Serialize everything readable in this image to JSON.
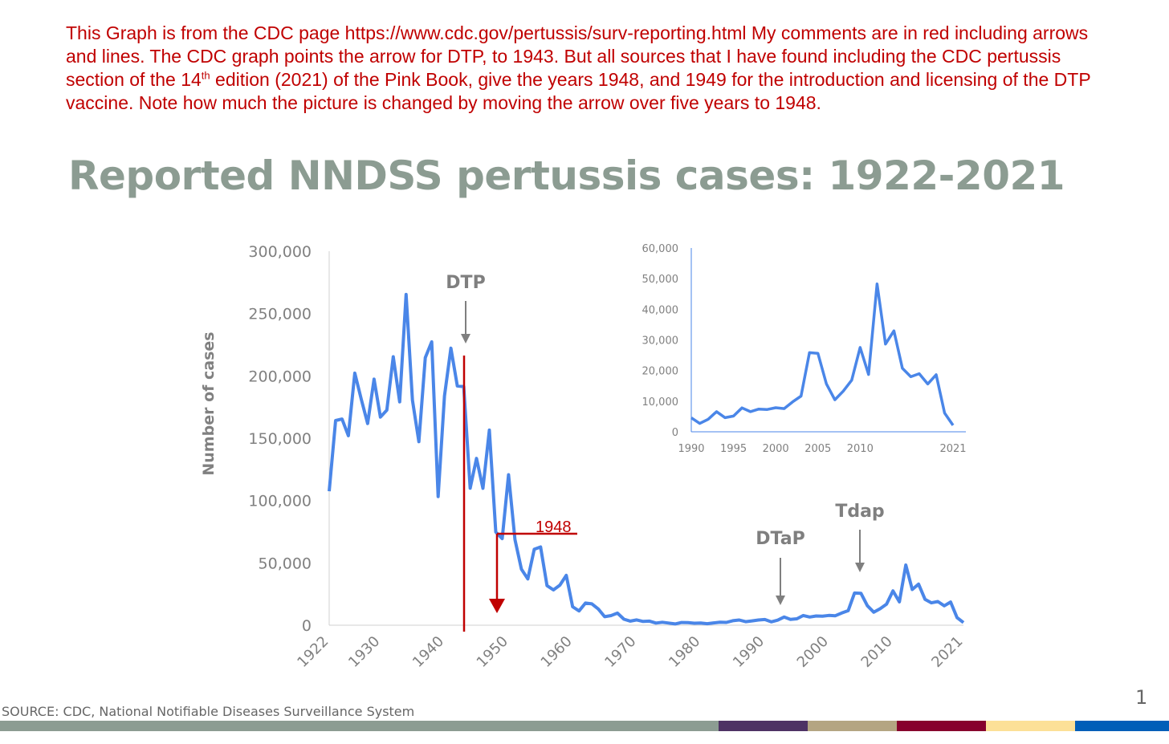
{
  "comment": {
    "part1": "This Graph is from the CDC page https://www.cdc.gov/pertussis/surv-reporting.html My comments are in red including arrows and lines. The CDC graph points the arrow for DTP, to 1943. But all sources that I have found including the CDC pertussis section of the 14",
    "sup": "th",
    "part2": " edition (2021) of the Pink Book, give the years 1948, and 1949 for the introduction and licensing of the DTP vaccine. Note how much the picture is changed by moving the arrow over five years to 1948."
  },
  "slide": {
    "title": "Reported NNDSS pertussis cases: 1922-2021",
    "source": "SOURCE:  CDC, National Notifiable Diseases Surveillance System",
    "page_number": "1"
  },
  "colors": {
    "line": "#4a86e8",
    "annotation_red": "#c00000",
    "title_gray": "#8c9c92",
    "axis_text": "#808080",
    "footer": [
      "#8c9c92",
      "#4e3264",
      "#b4a582",
      "#87002d",
      "#fce097",
      "#005eb8"
    ]
  },
  "chart_data": [
    {
      "type": "line",
      "title": "Reported NNDSS pertussis cases: 1922-2021",
      "ylabel": "Number of cases",
      "xlabel": "",
      "ylim": [
        0,
        300000
      ],
      "xlim": [
        1922,
        2021
      ],
      "yticks": [
        0,
        50000,
        100000,
        150000,
        200000,
        250000,
        300000
      ],
      "ytick_labels": [
        "0",
        "50,000",
        "100,000",
        "150,000",
        "200,000",
        "250,000",
        "300,000"
      ],
      "xticks": [
        1922,
        1930,
        1940,
        1950,
        1960,
        1970,
        1980,
        1990,
        2000,
        2010,
        2021
      ],
      "xtick_labels": [
        "1922",
        "1930",
        "1940",
        "1950",
        "1960",
        "1970",
        "1980",
        "1990",
        "2000",
        "2010",
        "2021"
      ],
      "grid": false,
      "series": [
        {
          "x": [
            1922,
            1923,
            1924,
            1925,
            1926,
            1927,
            1928,
            1929,
            1930,
            1931,
            1932,
            1933,
            1934,
            1935,
            1936,
            1937,
            1938,
            1939,
            1940,
            1941,
            1942,
            1943,
            1944,
            1945,
            1946,
            1947,
            1948,
            1949,
            1950,
            1951,
            1952,
            1953,
            1954,
            1955,
            1956,
            1957,
            1958,
            1959,
            1960,
            1961,
            1962,
            1963,
            1964,
            1965,
            1966,
            1967,
            1968,
            1969,
            1970,
            1971,
            1972,
            1973,
            1974,
            1975,
            1976,
            1977,
            1978,
            1979,
            1980,
            1981,
            1982,
            1983,
            1984,
            1985,
            1986,
            1987,
            1988,
            1989,
            1990,
            1991,
            1992,
            1993,
            1994,
            1995,
            1996,
            1997,
            1998,
            1999,
            2000,
            2001,
            2002,
            2003,
            2004,
            2005,
            2006,
            2007,
            2008,
            2009,
            2010,
            2011,
            2012,
            2013,
            2014,
            2015,
            2016,
            2017,
            2018,
            2019,
            2020,
            2021
          ],
          "values": [
            107473,
            164191,
            165418,
            152003,
            202210,
            181411,
            161799,
            197371,
            166914,
            172559,
            215343,
            179135,
            265269,
            180518,
            147237,
            214652,
            227319,
            103188,
            183866,
            222202,
            191890,
            191383,
            109873,
            133792,
            109860,
            156517,
            74715,
            69479,
            120718,
            68687,
            45030,
            37129,
            60886,
            62786,
            31732,
            28295,
            32148,
            40005,
            14809,
            11468,
            17749,
            17135,
            13005,
            6799,
            7717,
            9718,
            4810,
            3285,
            4249,
            3036,
            3287,
            1759,
            2402,
            1738,
            1010,
            2177,
            2063,
            1623,
            1730,
            1248,
            1895,
            2463,
            2276,
            3589,
            4195,
            2823,
            3450,
            4157,
            4570,
            2719,
            4083,
            6586,
            4617,
            5137,
            7796,
            6564,
            7405,
            7288,
            7867,
            7580,
            9771,
            11647,
            25827,
            25616,
            15632,
            10454,
            13278,
            16858,
            27550,
            18719,
            48277,
            28639,
            32971,
            20762,
            17972,
            18975,
            15609,
            18617,
            6124,
            2116
          ]
        }
      ],
      "annotations": [
        {
          "label": "DTP",
          "x": 1943
        },
        {
          "label": "DTaP",
          "x": 1992
        },
        {
          "label": "Tdap",
          "x": 2005
        },
        {
          "label": "1948",
          "x": 1948,
          "note": "red"
        }
      ]
    },
    {
      "type": "line",
      "title": "",
      "ylim": [
        0,
        60000
      ],
      "xlim": [
        1990,
        2021
      ],
      "yticks": [
        0,
        10000,
        20000,
        30000,
        40000,
        50000,
        60000
      ],
      "ytick_labels": [
        "0",
        "10,000",
        "20,000",
        "30,000",
        "40,000",
        "50,000",
        "60,000"
      ],
      "xticks": [
        1990,
        1995,
        2000,
        2005,
        2010,
        2021
      ],
      "xtick_labels": [
        "1990",
        "1995",
        "2000",
        "2005",
        "2010",
        "2021"
      ],
      "grid": false,
      "series": [
        {
          "x": [
            1990,
            1991,
            1992,
            1993,
            1994,
            1995,
            1996,
            1997,
            1998,
            1999,
            2000,
            2001,
            2002,
            2003,
            2004,
            2005,
            2006,
            2007,
            2008,
            2009,
            2010,
            2011,
            2012,
            2013,
            2014,
            2015,
            2016,
            2017,
            2018,
            2019,
            2020,
            2021
          ],
          "values": [
            4570,
            2719,
            4083,
            6586,
            4617,
            5137,
            7796,
            6564,
            7405,
            7288,
            7867,
            7580,
            9771,
            11647,
            25827,
            25616,
            15632,
            10454,
            13278,
            16858,
            27550,
            18719,
            48277,
            28639,
            32971,
            20762,
            17972,
            18975,
            15609,
            18617,
            6124,
            2116
          ]
        }
      ]
    }
  ]
}
